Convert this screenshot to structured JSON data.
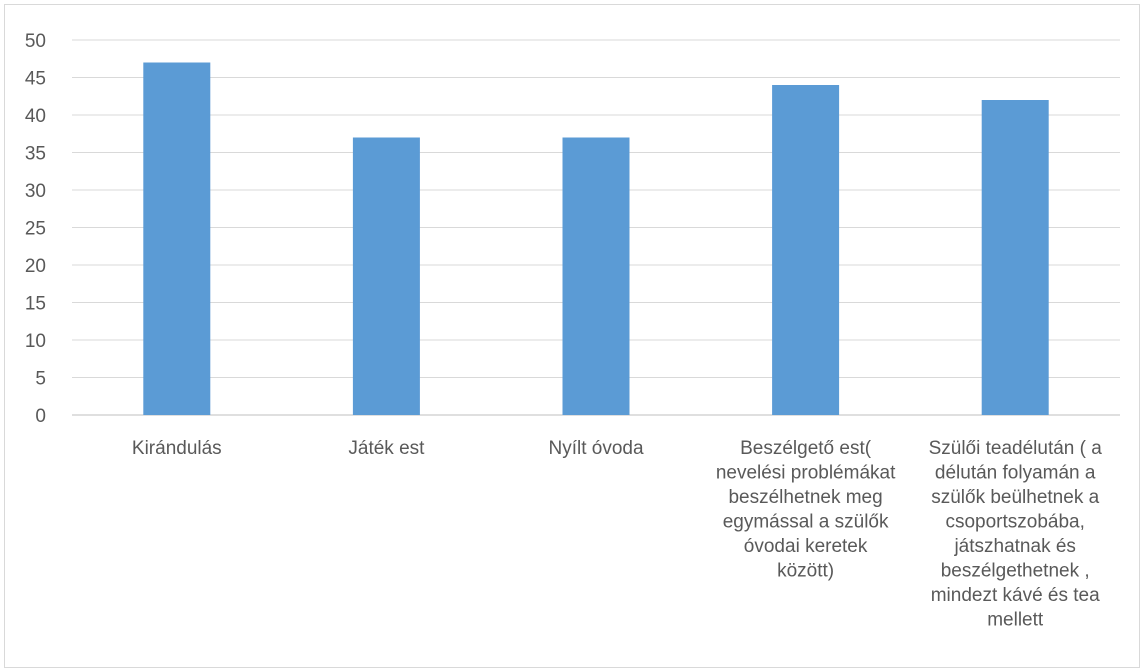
{
  "chart_data": {
    "type": "bar",
    "categories": [
      [
        "Kirándulás"
      ],
      [
        "Játék est"
      ],
      [
        "Nyílt óvoda"
      ],
      [
        "Beszélgető est(",
        "nevelési problémákat",
        "beszélhetnek meg",
        "egymással a szülők",
        "óvodai  keretek",
        "között)"
      ],
      [
        "Szülői  teadélután ( a",
        "délután folyamán a",
        "szülők beülhetnek a",
        "csoportszobába,",
        "játszhatnak és",
        "beszélgethetnek ,",
        "mindezt  kávé és tea",
        "mellett"
      ]
    ],
    "values": [
      47,
      37,
      37,
      44,
      42
    ],
    "ylim": [
      0,
      50
    ],
    "yticks": [
      0,
      5,
      10,
      15,
      20,
      25,
      30,
      35,
      40,
      45,
      50
    ],
    "grid": true,
    "bar_color": "#5b9bd5"
  }
}
